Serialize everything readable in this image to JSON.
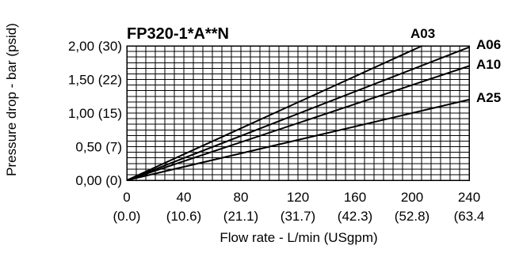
{
  "chart_data": {
    "type": "line",
    "title": "FP320-1*A**N",
    "xlabel": "Flow rate - L/min (USgpm)",
    "ylabel": "Pressure drop - bar (psid)",
    "xlim": [
      0,
      240
    ],
    "ylim": [
      0,
      2
    ],
    "grid": true,
    "x_ticks": [
      {
        "value": 0,
        "label": "0",
        "sublabel": "(0.0)"
      },
      {
        "value": 40,
        "label": "40",
        "sublabel": "(10.6)"
      },
      {
        "value": 80,
        "label": "80",
        "sublabel": "(21.1)"
      },
      {
        "value": 120,
        "label": "120",
        "sublabel": "(31.7)"
      },
      {
        "value": 160,
        "label": "160",
        "sublabel": "(42.3)"
      },
      {
        "value": 200,
        "label": "200",
        "sublabel": "(52.8)"
      },
      {
        "value": 240,
        "label": "240",
        "sublabel": "(63.4"
      }
    ],
    "y_ticks": [
      {
        "value": 0,
        "label": "0,00 (0)"
      },
      {
        "value": 0.5,
        "label": "0,50 (7)"
      },
      {
        "value": 1.0,
        "label": "1,00 (15)"
      },
      {
        "value": 1.5,
        "label": "1,50 (22)"
      },
      {
        "value": 2.0,
        "label": "2,00 (30)"
      }
    ],
    "series": [
      {
        "name": "A03",
        "x": [
          0,
          207
        ],
        "y": [
          0,
          2.0
        ]
      },
      {
        "name": "A06",
        "x": [
          0,
          240
        ],
        "y": [
          0,
          1.98
        ]
      },
      {
        "name": "A10",
        "x": [
          0,
          240
        ],
        "y": [
          0,
          1.7
        ]
      },
      {
        "name": "A25",
        "x": [
          0,
          240
        ],
        "y": [
          0,
          1.2
        ]
      }
    ]
  }
}
